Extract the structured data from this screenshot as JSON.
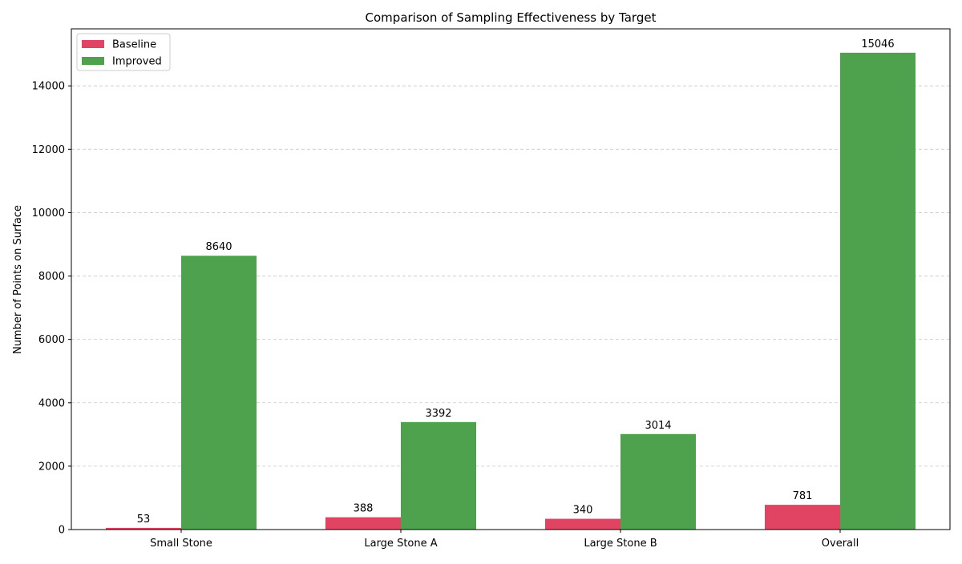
{
  "chart_data": {
    "type": "bar",
    "title": "Comparison of Sampling Effectiveness by Target",
    "xlabel": "",
    "ylabel": "Number of Points on Surface",
    "categories": [
      "Small Stone",
      "Large Stone A",
      "Large Stone B",
      "Overall"
    ],
    "series": [
      {
        "name": "Baseline",
        "values": [
          53,
          388,
          340,
          781
        ],
        "color": "#e04462"
      },
      {
        "name": "Improved",
        "values": [
          8640,
          3392,
          3014,
          15046
        ],
        "color": "#4fa24d"
      }
    ],
    "ylim": [
      0,
      15800
    ],
    "yticks": [
      0,
      2000,
      4000,
      6000,
      8000,
      10000,
      12000,
      14000
    ],
    "grid": {
      "axis": "y",
      "style": "dashed",
      "color": "#c8c8c8"
    },
    "legend": {
      "position": "top-left"
    },
    "data_labels": true
  }
}
